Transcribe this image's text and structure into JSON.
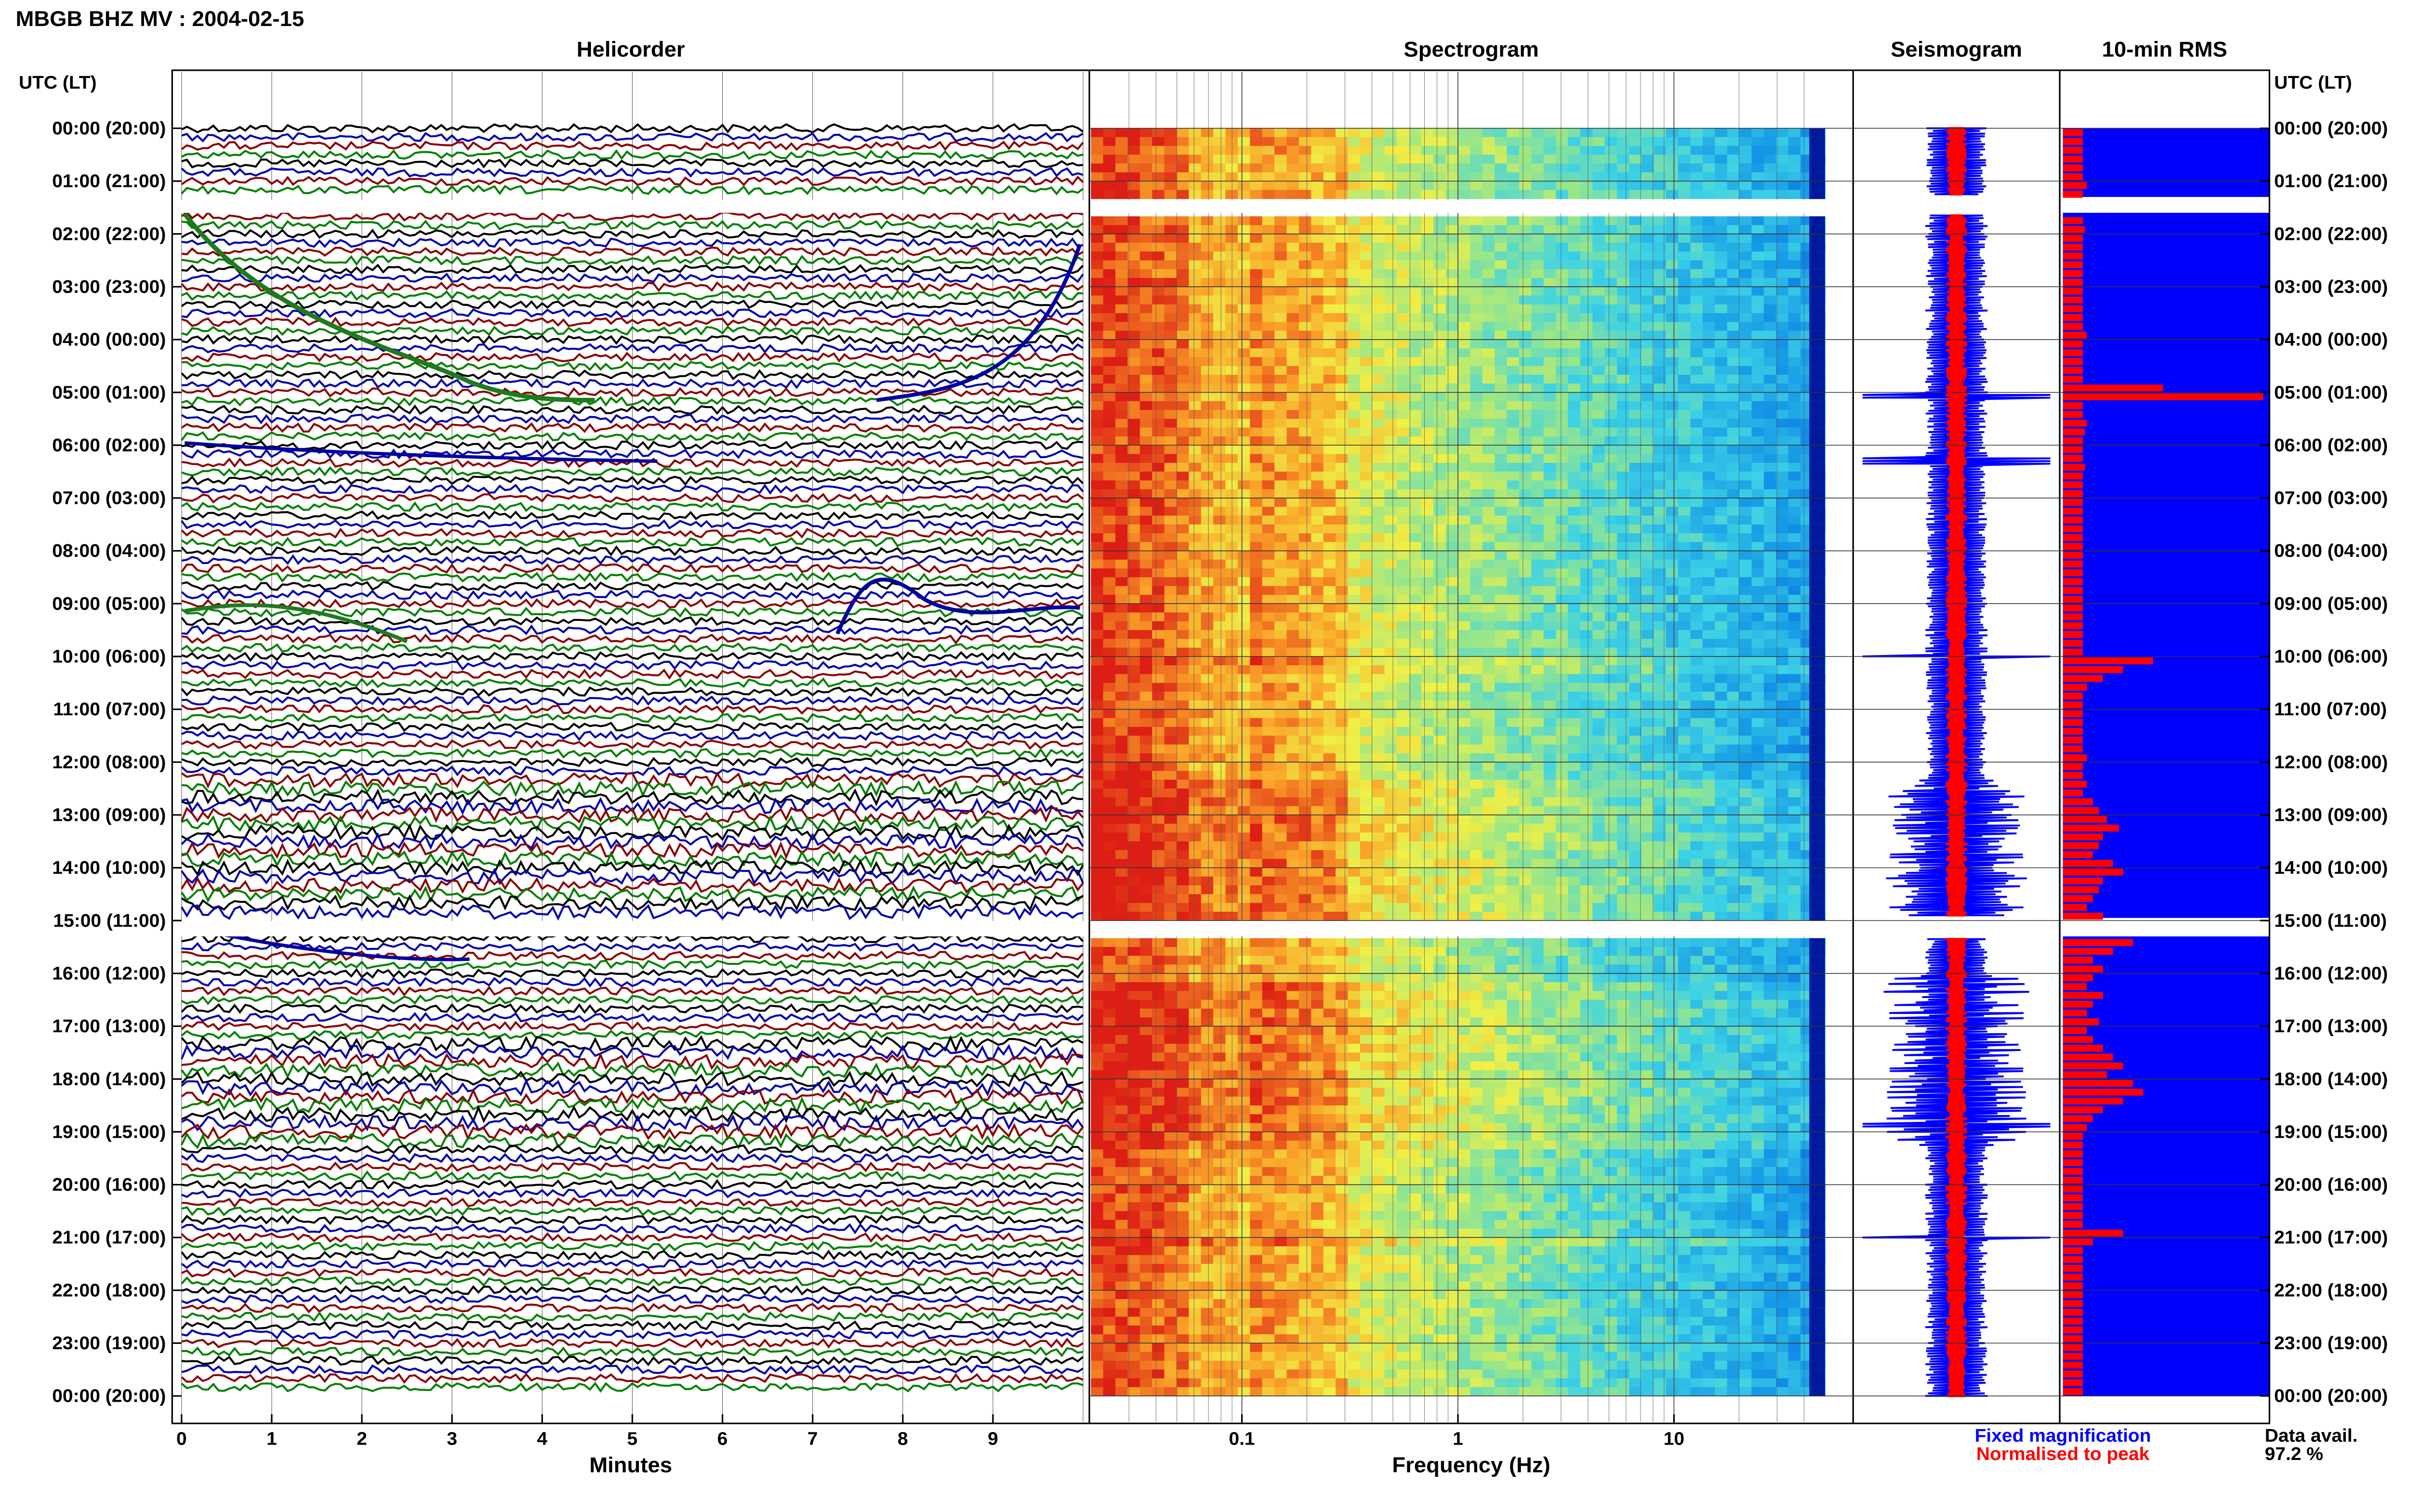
{
  "header": {
    "title": "MBGB BHZ MV : 2004-02-15"
  },
  "panels": {
    "helicorder": "Helicorder",
    "spectrogram": "Spectrogram",
    "seismogram": "Seismogram",
    "rms": "10-min RMS"
  },
  "axes": {
    "time_label_left": "UTC (LT)",
    "time_label_right": "UTC (LT)",
    "minutes_label": "Minutes",
    "frequency_label": "Frequency (Hz)"
  },
  "legend": {
    "fixed": "Fixed magnification",
    "normalised": "Normalised to peak",
    "fixed_color": "#0000ff",
    "normalised_color": "#ff0000"
  },
  "availability": {
    "label": "Data avail.",
    "value": "97.2 %"
  },
  "chart_data": {
    "type": "helicorder-spectrogram",
    "time_ticks": [
      "00:00 (20:00)",
      "01:00 (21:00)",
      "02:00 (22:00)",
      "03:00 (23:00)",
      "04:00 (00:00)",
      "05:00 (01:00)",
      "06:00 (02:00)",
      "07:00 (03:00)",
      "08:00 (04:00)",
      "09:00 (05:00)",
      "10:00 (06:00)",
      "11:00 (07:00)",
      "12:00 (08:00)",
      "13:00 (09:00)",
      "14:00 (10:00)",
      "15:00 (11:00)",
      "16:00 (12:00)",
      "17:00 (13:00)",
      "18:00 (14:00)",
      "19:00 (15:00)",
      "20:00 (16:00)",
      "21:00 (17:00)",
      "22:00 (18:00)",
      "23:00 (19:00)",
      "00:00 (20:00)"
    ],
    "minutes_ticks": [
      "0",
      "1",
      "2",
      "3",
      "4",
      "5",
      "6",
      "7",
      "8",
      "9"
    ],
    "minutes_range": [
      0,
      10
    ],
    "frequency_ticks": [
      "0.1",
      "1",
      "10"
    ],
    "frequency_range_hz": [
      0.02,
      50
    ],
    "frequency_scale": "log",
    "trace_colors": [
      "#000000",
      "#0000b0",
      "#8b0000",
      "#008000"
    ],
    "data_gaps_utc_hours": [
      [
        1.3,
        1.6
      ],
      [
        14.95,
        15.3
      ]
    ],
    "rms_10min": [
      0.1,
      0.1,
      0.1,
      0.1,
      0.1,
      0.1,
      0.12,
      0.1,
      0.1,
      0.1,
      0.1,
      0.11,
      0.1,
      0.1,
      0.1,
      0.1,
      0.1,
      0.1,
      0.1,
      0.1,
      0.1,
      0.1,
      0.1,
      0.12,
      0.1,
      0.1,
      0.1,
      0.1,
      0.1,
      0.5,
      1.0,
      0.1,
      0.1,
      0.12,
      0.11,
      0.1,
      0.1,
      0.1,
      0.11,
      0.1,
      0.1,
      0.1,
      0.1,
      0.1,
      0.1,
      0.1,
      0.1,
      0.1,
      0.1,
      0.1,
      0.1,
      0.1,
      0.1,
      0.1,
      0.1,
      0.1,
      0.1,
      0.1,
      0.1,
      0.1,
      0.45,
      0.3,
      0.2,
      0.12,
      0.1,
      0.1,
      0.1,
      0.1,
      0.1,
      0.1,
      0.1,
      0.12,
      0.1,
      0.1,
      0.12,
      0.1,
      0.15,
      0.18,
      0.22,
      0.28,
      0.2,
      0.18,
      0.15,
      0.25,
      0.3,
      0.2,
      0.18,
      0.15,
      0.12,
      0.2,
      0.15,
      0.12,
      0.35,
      0.25,
      0.15,
      0.2,
      0.15,
      0.12,
      0.2,
      0.15,
      0.12,
      0.18,
      0.12,
      0.15,
      0.2,
      0.25,
      0.3,
      0.22,
      0.35,
      0.4,
      0.3,
      0.2,
      0.15,
      0.12,
      0.1,
      0.1,
      0.1,
      0.1,
      0.1,
      0.1,
      0.1,
      0.1,
      0.1,
      0.1,
      0.1,
      0.3,
      0.15,
      0.1,
      0.1,
      0.1,
      0.1,
      0.1,
      0.1,
      0.1,
      0.1,
      0.1,
      0.1,
      0.1,
      0.1,
      0.1,
      0.1,
      0.1,
      0.1,
      0.1
    ]
  }
}
